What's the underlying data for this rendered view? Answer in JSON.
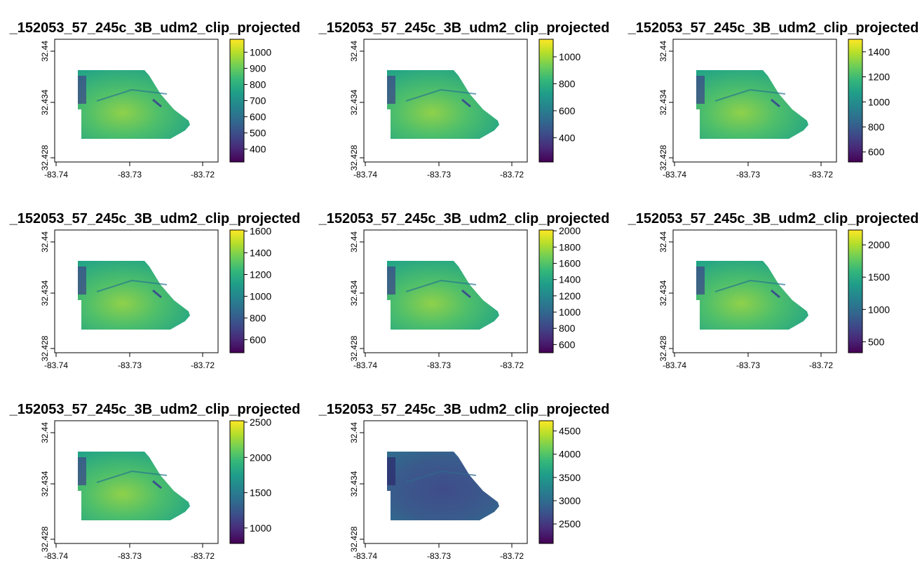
{
  "chart_data": [
    {
      "type": "heatmap",
      "title": "_152053_57_245c_3B_udm2_clip_projected",
      "x_ticks": [
        "-83.74",
        "-83.73",
        "-83.72"
      ],
      "y_ticks": [
        "32.428",
        "32.434",
        "32.44"
      ],
      "colorbar": {
        "ticks": [
          "400",
          "500",
          "600",
          "700",
          "800",
          "900",
          "1000"
        ],
        "range": [
          320,
          1080
        ]
      },
      "colors": {
        "low": "#440154",
        "high": "#fde725"
      }
    },
    {
      "type": "heatmap",
      "title": "_152053_57_245c_3B_udm2_clip_projected",
      "x_ticks": [
        "-83.74",
        "-83.73",
        "-83.72"
      ],
      "y_ticks": [
        "32.428",
        "32.434",
        "32.44"
      ],
      "colorbar": {
        "ticks": [
          "400",
          "600",
          "800",
          "1000"
        ],
        "range": [
          220,
          1130
        ]
      },
      "colors": {
        "low": "#440154",
        "high": "#fde725"
      }
    },
    {
      "type": "heatmap",
      "title": "_152053_57_245c_3B_udm2_clip_projected",
      "x_ticks": [
        "-83.74",
        "-83.73",
        "-83.72"
      ],
      "y_ticks": [
        "32.428",
        "32.434",
        "32.44"
      ],
      "colorbar": {
        "ticks": [
          "600",
          "800",
          "1000",
          "1200",
          "1400"
        ],
        "range": [
          520,
          1500
        ]
      },
      "colors": {
        "low": "#440154",
        "high": "#fde725"
      }
    },
    {
      "type": "heatmap",
      "title": "_152053_57_245c_3B_udm2_clip_projected",
      "x_ticks": [
        "-83.74",
        "-83.73",
        "-83.72"
      ],
      "y_ticks": [
        "32.428",
        "32.434",
        "32.44"
      ],
      "colorbar": {
        "ticks": [
          "600",
          "800",
          "1000",
          "1200",
          "1400",
          "1600"
        ],
        "range": [
          480,
          1610
        ]
      },
      "colors": {
        "low": "#440154",
        "high": "#fde725"
      }
    },
    {
      "type": "heatmap",
      "title": "_152053_57_245c_3B_udm2_clip_projected",
      "x_ticks": [
        "-83.74",
        "-83.73",
        "-83.72"
      ],
      "y_ticks": [
        "32.428",
        "32.434",
        "32.44"
      ],
      "colorbar": {
        "ticks": [
          "600",
          "800",
          "1000",
          "1200",
          "1400",
          "1600",
          "1800",
          "2000"
        ],
        "range": [
          500,
          2010
        ]
      },
      "colors": {
        "low": "#440154",
        "high": "#fde725"
      }
    },
    {
      "type": "heatmap",
      "title": "_152053_57_245c_3B_udm2_clip_projected",
      "x_ticks": [
        "-83.74",
        "-83.73",
        "-83.72"
      ],
      "y_ticks": [
        "32.428",
        "32.434",
        "32.44"
      ],
      "colorbar": {
        "ticks": [
          "500",
          "1000",
          "1500",
          "2000"
        ],
        "range": [
          330,
          2230
        ]
      },
      "colors": {
        "low": "#440154",
        "high": "#fde725"
      }
    },
    {
      "type": "heatmap",
      "title": "_152053_57_245c_3B_udm2_clip_projected",
      "x_ticks": [
        "-83.74",
        "-83.73",
        "-83.72"
      ],
      "y_ticks": [
        "32.428",
        "32.434",
        "32.44"
      ],
      "colorbar": {
        "ticks": [
          "1000",
          "1500",
          "2000",
          "2500"
        ],
        "range": [
          780,
          2520
        ]
      },
      "colors": {
        "low": "#440154",
        "high": "#fde725"
      }
    },
    {
      "type": "heatmap",
      "title": "_152053_57_245c_3B_udm2_clip_projected",
      "x_ticks": [
        "-83.74",
        "-83.73",
        "-83.72"
      ],
      "y_ticks": [
        "32.428",
        "32.434",
        "32.44"
      ],
      "colorbar": {
        "ticks": [
          "2500",
          "3000",
          "3500",
          "4000",
          "4500"
        ],
        "range": [
          2080,
          4720
        ]
      },
      "colors": {
        "low": "#440154",
        "high": "#fde725"
      }
    }
  ]
}
